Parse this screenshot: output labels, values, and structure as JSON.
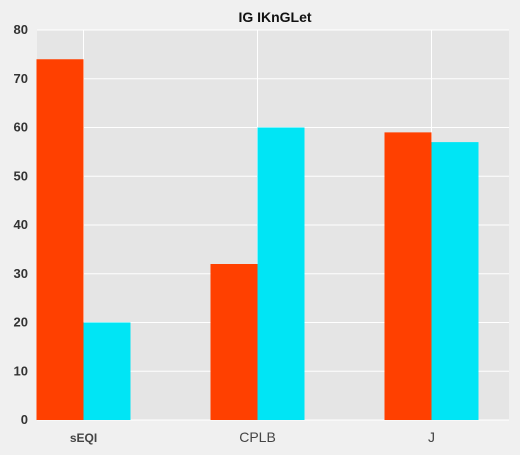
{
  "chart_data": {
    "type": "bar",
    "title": "IG IKnGLet",
    "xlabel": "",
    "ylabel": "",
    "categories": [
      "sEQI",
      "CPLB",
      "J"
    ],
    "series": [
      {
        "values": [
          74,
          32,
          59
        ],
        "color": "#ff4000"
      },
      {
        "values": [
          20,
          60,
          57
        ],
        "color": "#00e5f5"
      }
    ],
    "ylim": [
      0,
      80
    ],
    "yticks": [
      0,
      10,
      20,
      30,
      40,
      50,
      60,
      70,
      80
    ],
    "grid": true,
    "legend": "none",
    "plot_background": "#e5e5e5",
    "grid_color": "#ffffff"
  }
}
